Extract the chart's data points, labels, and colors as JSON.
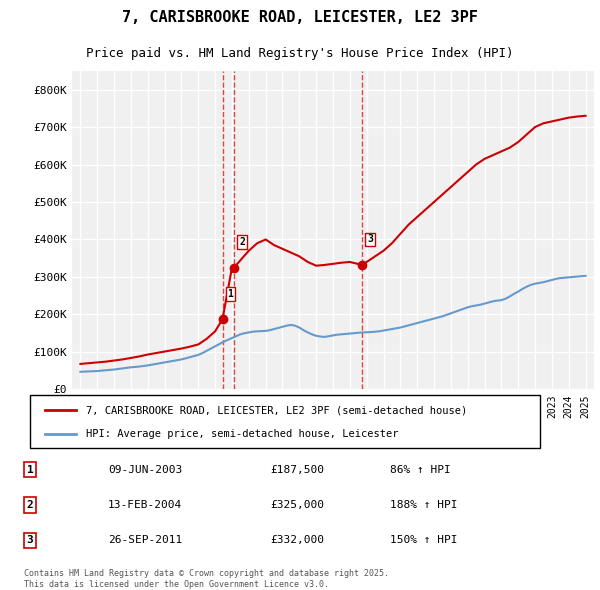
{
  "title": "7, CARISBROOKE ROAD, LEICESTER, LE2 3PF",
  "subtitle": "Price paid vs. HM Land Registry's House Price Index (HPI)",
  "background_color": "#ffffff",
  "plot_bg_color": "#f0f0f0",
  "grid_color": "#ffffff",
  "red_color": "#cc0000",
  "blue_color": "#6699cc",
  "ylim": [
    0,
    850000
  ],
  "yticks": [
    0,
    100000,
    200000,
    300000,
    400000,
    500000,
    600000,
    700000,
    800000
  ],
  "ytick_labels": [
    "£0",
    "£100K",
    "£200K",
    "£300K",
    "£400K",
    "£500K",
    "£600K",
    "£700K",
    "£800K"
  ],
  "xmin": 1994.5,
  "xmax": 2025.5,
  "legend_line1": "7, CARISBROOKE ROAD, LEICESTER, LE2 3PF (semi-detached house)",
  "legend_line2": "HPI: Average price, semi-detached house, Leicester",
  "transaction1_label": "1",
  "transaction1_date": "09-JUN-2003",
  "transaction1_price": "£187,500",
  "transaction1_hpi": "86% ↑ HPI",
  "transaction1_x": 2003.44,
  "transaction1_y": 187500,
  "transaction2_label": "2",
  "transaction2_date": "13-FEB-2004",
  "transaction2_price": "£325,000",
  "transaction2_hpi": "188% ↑ HPI",
  "transaction2_x": 2004.12,
  "transaction2_y": 325000,
  "transaction3_label": "3",
  "transaction3_date": "26-SEP-2011",
  "transaction3_price": "£332,000",
  "transaction3_hpi": "150% ↑ HPI",
  "transaction3_x": 2011.74,
  "transaction3_y": 332000,
  "footer": "Contains HM Land Registry data © Crown copyright and database right 2025.\nThis data is licensed under the Open Government Licence v3.0.",
  "hpi_years": [
    1995,
    1995.25,
    1995.5,
    1995.75,
    1996,
    1996.25,
    1996.5,
    1996.75,
    1997,
    1997.25,
    1997.5,
    1997.75,
    1998,
    1998.25,
    1998.5,
    1998.75,
    1999,
    1999.25,
    1999.5,
    1999.75,
    2000,
    2000.25,
    2000.5,
    2000.75,
    2001,
    2001.25,
    2001.5,
    2001.75,
    2002,
    2002.25,
    2002.5,
    2002.75,
    2003,
    2003.25,
    2003.5,
    2003.75,
    2004,
    2004.25,
    2004.5,
    2004.75,
    2005,
    2005.25,
    2005.5,
    2005.75,
    2006,
    2006.25,
    2006.5,
    2006.75,
    2007,
    2007.25,
    2007.5,
    2007.75,
    2008,
    2008.25,
    2008.5,
    2008.75,
    2009,
    2009.25,
    2009.5,
    2009.75,
    2010,
    2010.25,
    2010.5,
    2010.75,
    2011,
    2011.25,
    2011.5,
    2011.75,
    2012,
    2012.25,
    2012.5,
    2012.75,
    2013,
    2013.25,
    2013.5,
    2013.75,
    2014,
    2014.25,
    2014.5,
    2014.75,
    2015,
    2015.25,
    2015.5,
    2015.75,
    2016,
    2016.25,
    2016.5,
    2016.75,
    2017,
    2017.25,
    2017.5,
    2017.75,
    2018,
    2018.25,
    2018.5,
    2018.75,
    2019,
    2019.25,
    2019.5,
    2019.75,
    2020,
    2020.25,
    2020.5,
    2020.75,
    2021,
    2021.25,
    2021.5,
    2021.75,
    2022,
    2022.25,
    2022.5,
    2022.75,
    2023,
    2023.25,
    2023.5,
    2023.75,
    2024,
    2024.25,
    2024.5,
    2024.75,
    2025
  ],
  "hpi_values": [
    47000,
    47500,
    48000,
    48500,
    49000,
    50000,
    51000,
    52000,
    53000,
    54500,
    56000,
    57500,
    59000,
    60000,
    61000,
    62500,
    64000,
    66000,
    68000,
    70000,
    72000,
    74000,
    76000,
    78000,
    80000,
    83000,
    86000,
    89000,
    92000,
    97000,
    103000,
    109000,
    115000,
    121000,
    127000,
    132000,
    137000,
    142000,
    147000,
    150000,
    152000,
    154000,
    155000,
    155500,
    156000,
    158000,
    161000,
    164000,
    167000,
    170000,
    172000,
    170000,
    165000,
    158000,
    152000,
    147000,
    143000,
    141000,
    140000,
    142000,
    144000,
    146000,
    147000,
    148000,
    149000,
    150000,
    151000,
    152000,
    152500,
    153000,
    154000,
    155000,
    157000,
    159000,
    161000,
    163000,
    165000,
    168000,
    171000,
    174000,
    177000,
    180000,
    183000,
    186000,
    189000,
    192000,
    195000,
    199000,
    203000,
    207000,
    211000,
    215000,
    219000,
    222000,
    224000,
    226000,
    229000,
    232000,
    235000,
    237000,
    238000,
    242000,
    248000,
    255000,
    261000,
    268000,
    274000,
    279000,
    282000,
    284000,
    286000,
    289000,
    292000,
    295000,
    297000,
    298000,
    299000,
    300000,
    301000,
    302000,
    303000
  ],
  "price_years": [
    1995,
    1995.5,
    1996,
    1996.5,
    1997,
    1997.5,
    1998,
    1998.5,
    1999,
    1999.5,
    2000,
    2000.5,
    2001,
    2001.5,
    2002,
    2002.5,
    2003,
    2003.44,
    2004,
    2004.12,
    2005,
    2005.5,
    2006,
    2006.5,
    2007,
    2007.5,
    2008,
    2008.5,
    2009,
    2009.5,
    2010,
    2010.5,
    2011,
    2011.74,
    2012,
    2012.5,
    2013,
    2013.5,
    2014,
    2014.5,
    2015,
    2015.5,
    2016,
    2016.5,
    2017,
    2017.5,
    2018,
    2018.5,
    2019,
    2019.5,
    2020,
    2020.5,
    2021,
    2021.5,
    2022,
    2022.5,
    2023,
    2023.5,
    2024,
    2024.5,
    2025
  ],
  "price_values": [
    68000,
    70000,
    72000,
    74000,
    77000,
    80000,
    84000,
    88000,
    93000,
    97000,
    101000,
    105000,
    109000,
    114000,
    120000,
    135000,
    155000,
    187500,
    325000,
    325000,
    370000,
    390000,
    400000,
    385000,
    375000,
    365000,
    355000,
    340000,
    330000,
    332000,
    335000,
    338000,
    340000,
    332000,
    340000,
    355000,
    370000,
    390000,
    415000,
    440000,
    460000,
    480000,
    500000,
    520000,
    540000,
    560000,
    580000,
    600000,
    615000,
    625000,
    635000,
    645000,
    660000,
    680000,
    700000,
    710000,
    715000,
    720000,
    725000,
    728000,
    730000
  ]
}
